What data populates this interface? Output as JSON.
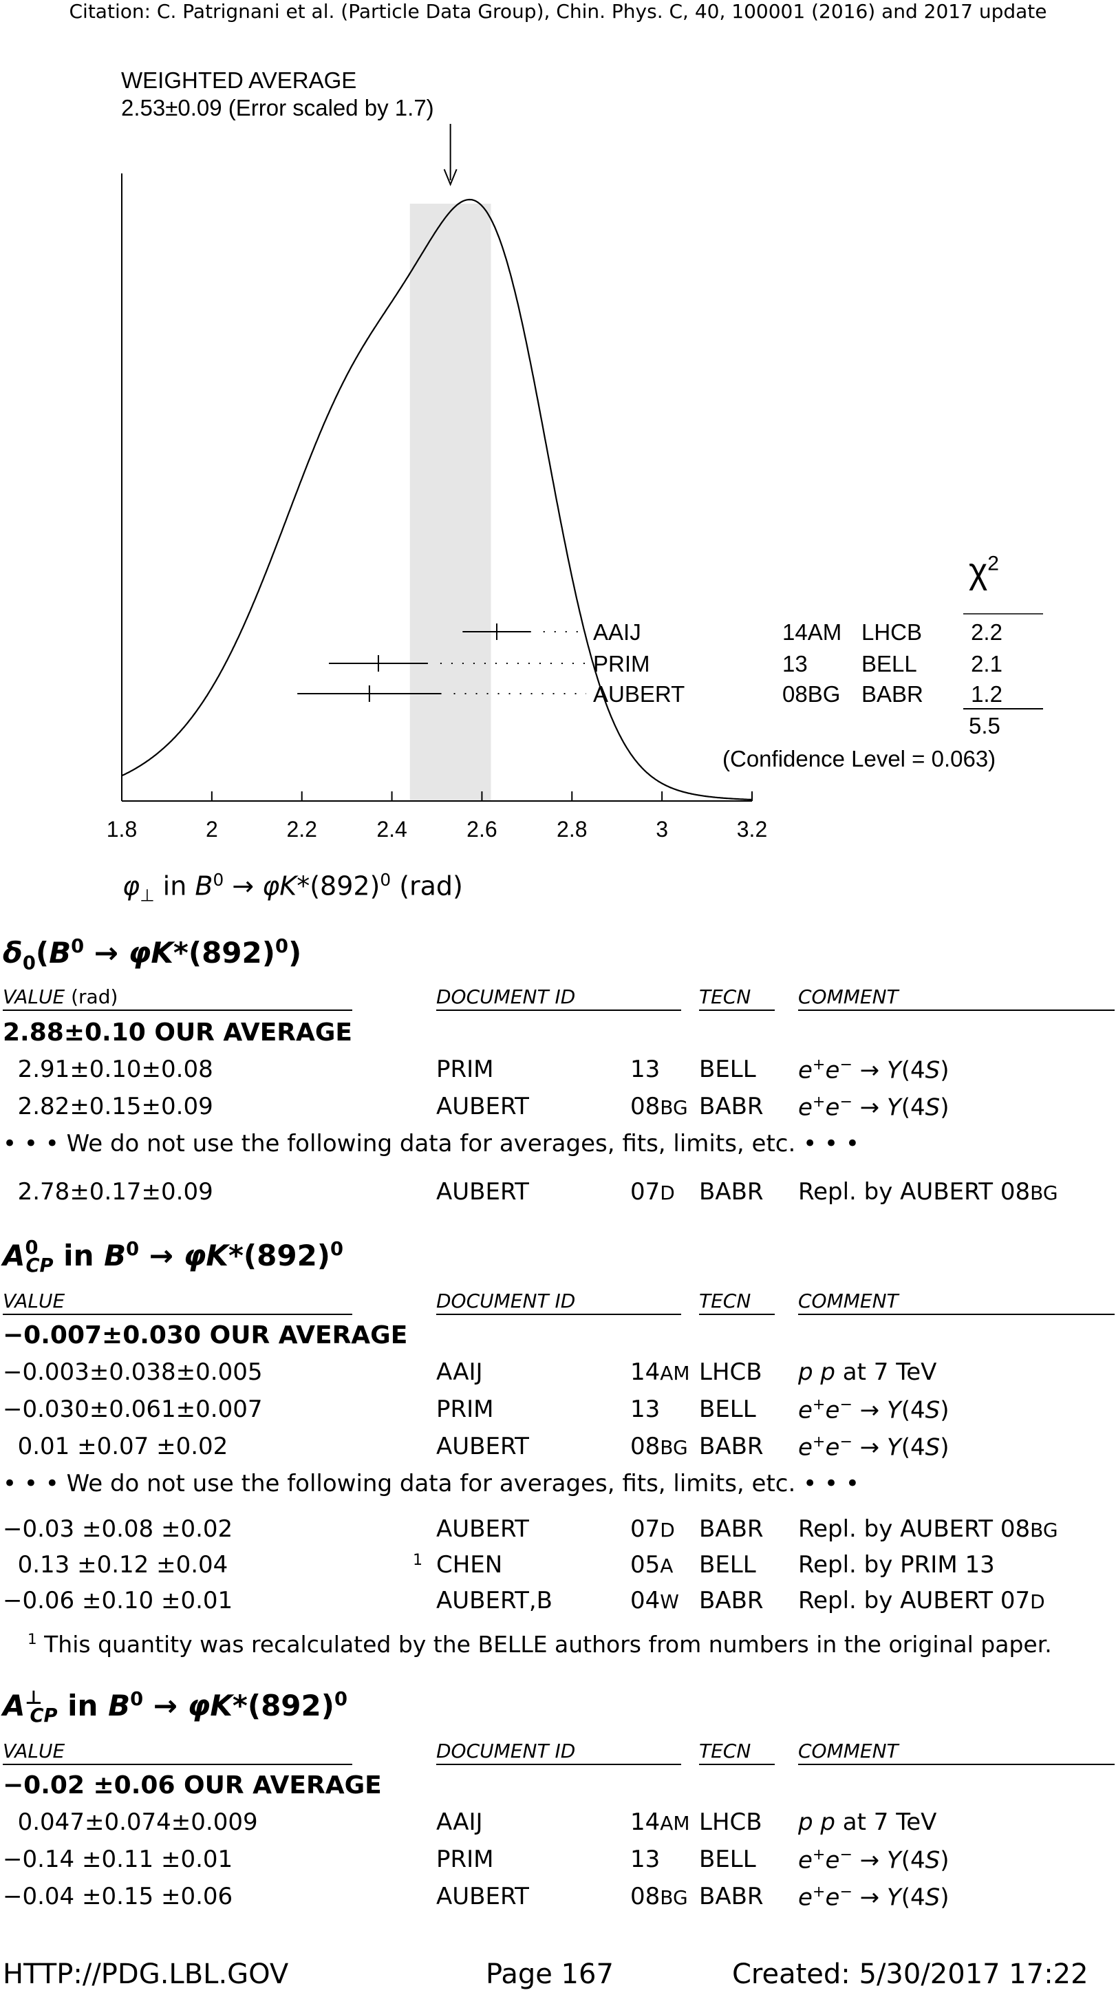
{
  "header": {
    "citation": "Citation: C. Patrignani et al. (Particle Data Group), Chin. Phys. C, 40, 100001 (2016) and 2017 update"
  },
  "chart_data": {
    "type": "ideogram",
    "title": "WEIGHTED AVERAGE",
    "subtitle": "2.53±0.09 (Error scaled by 1.7)",
    "weighted_average": 2.53,
    "error": 0.09,
    "band": [
      2.44,
      2.62
    ],
    "xlim": [
      1.8,
      3.2
    ],
    "xticks": [
      "1.8",
      "2",
      "2.2",
      "2.4",
      "2.6",
      "2.8",
      "3",
      "3.2"
    ],
    "xlabel": "φ⊥ in B0 → φK*(892)0 (rad)",
    "measurements": [
      {
        "name": "AAIJ",
        "value": 2.633,
        "err": 0.076,
        "ref": "14AM",
        "tecn": "LHCB",
        "chi2": "2.2"
      },
      {
        "name": "PRIM",
        "value": 2.37,
        "err": 0.11,
        "ref": "13",
        "tecn": "BELL",
        "chi2": "2.1"
      },
      {
        "name": "AUBERT",
        "value": 2.35,
        "err": 0.16,
        "ref": "08BG",
        "tecn": "BABR",
        "chi2": "1.2"
      }
    ],
    "chi2_header": "χ2",
    "chi2_total": "5.5",
    "confidence_level": "(Confidence Level = 0.063)"
  },
  "columns": {
    "value": "VALUE",
    "value_rad": "VALUE (rad)",
    "document_id": "DOCUMENT ID",
    "tecn": "TECN",
    "comment": "COMMENT"
  },
  "nouse": "• • • We do not use the following data for averages, fits, limits, etc. • • •",
  "section1": {
    "title": "δ0(B0 → φK*(892)0)",
    "average": "2.88±0.10 OUR AVERAGE",
    "rows": [
      {
        "value": "2.91±0.10±0.08",
        "doc": "PRIM",
        "year": "13",
        "tecn": "BELL",
        "comment": "e+e− → Υ(4S)"
      },
      {
        "value": "2.82±0.15±0.09",
        "doc": "AUBERT",
        "year": "08BG",
        "tecn": "BABR",
        "comment": "e+e− → Υ(4S)"
      }
    ],
    "extra_rows": [
      {
        "value": "2.78±0.17±0.09",
        "doc": "AUBERT",
        "year": "07D",
        "tecn": "BABR",
        "comment": "Repl. by AUBERT 08BG"
      }
    ]
  },
  "section2": {
    "title": "A0CP in B0 → φK*(892)0",
    "average": "−0.007±0.030 OUR AVERAGE",
    "rows": [
      {
        "value": "−0.003±0.038±0.005",
        "doc": "AAIJ",
        "year": "14AM",
        "tecn": "LHCB",
        "comment": "pp at 7 TeV"
      },
      {
        "value": "−0.030±0.061±0.007",
        "doc": "PRIM",
        "year": "13",
        "tecn": "BELL",
        "comment": "e+e− → Υ(4S)"
      },
      {
        "value": "0.01 ±0.07 ±0.02",
        "doc": "AUBERT",
        "year": "08BG",
        "tecn": "BABR",
        "comment": "e+e− → Υ(4S)"
      }
    ],
    "extra_rows": [
      {
        "value": "−0.03 ±0.08 ±0.02",
        "doc": "AUBERT",
        "year": "07D",
        "tecn": "BABR",
        "comment": "Repl. by AUBERT 08BG"
      },
      {
        "value": "0.13 ±0.12 ±0.04",
        "note": "1",
        "doc": "CHEN",
        "year": "05A",
        "tecn": "BELL",
        "comment": "Repl. by PRIM 13"
      },
      {
        "value": "−0.06 ±0.10 ±0.01",
        "doc": "AUBERT,B",
        "year": "04W",
        "tecn": "BABR",
        "comment": "Repl. by AUBERT 07D"
      }
    ],
    "footnote_mark": "1",
    "footnote": "This quantity was recalculated by the BELLE authors from numbers in the original paper."
  },
  "section3": {
    "title": "A⊥CP in B0 → φK*(892)0",
    "average": "−0.02 ±0.06 OUR AVERAGE",
    "rows": [
      {
        "value": "0.047±0.074±0.009",
        "doc": "AAIJ",
        "year": "14AM",
        "tecn": "LHCB",
        "comment": "pp at 7 TeV"
      },
      {
        "value": "−0.14 ±0.11 ±0.01",
        "doc": "PRIM",
        "year": "13",
        "tecn": "BELL",
        "comment": "e+e− → Υ(4S)"
      },
      {
        "value": "−0.04 ±0.15 ±0.06",
        "doc": "AUBERT",
        "year": "08BG",
        "tecn": "BABR",
        "comment": "e+e− → Υ(4S)"
      }
    ]
  },
  "footer": {
    "url": "HTTP://PDG.LBL.GOV",
    "page": "Page 167",
    "created": "Created: 5/30/2017 17:22"
  }
}
